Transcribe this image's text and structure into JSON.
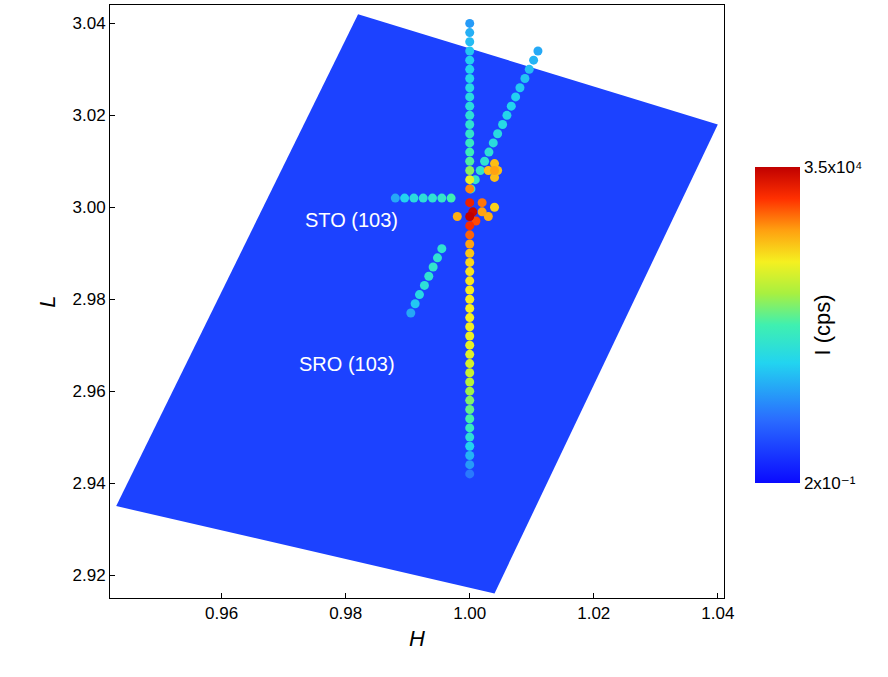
{
  "chart_data": {
    "type": "heatmap",
    "xlabel": "H",
    "ylabel": "L",
    "xlim": [
      0.942,
      1.041
    ],
    "ylim": [
      2.915,
      3.044
    ],
    "xticks": [
      0.96,
      0.98,
      {
        "value": 1,
        "label": "1.00"
      },
      1.02,
      1.04
    ],
    "yticks": [
      2.92,
      2.94,
      2.96,
      2.98,
      {
        "value": 3,
        "label": "3.00"
      },
      3.02,
      3.04
    ],
    "annotations": [
      {
        "text": "STO (103)",
        "x": 0.981,
        "y": 2.9972
      },
      {
        "text": "SRO (103)",
        "x": 0.9802,
        "y": 2.966
      }
    ],
    "map_outline": {
      "x": [
        0.982,
        1.04,
        1.004,
        0.943
      ],
      "y": [
        3.042,
        3.018,
        2.916,
        2.935
      ]
    },
    "background": 0.8,
    "points": {
      "x": [
        0.988,
        0.9895,
        0.991,
        0.9925,
        0.994,
        0.9955,
        0.997,
        0.9905,
        0.9912,
        0.9919,
        0.9927,
        0.9934,
        0.9941,
        0.9948,
        0.9955,
        1.0002,
        1.0009,
        1.0017,
        1.0024,
        1.0031,
        1.0038,
        1.0045,
        1.0053,
        1.006,
        1.0067,
        1.0074,
        1.0081,
        1.0089,
        1.0096,
        1.0103,
        1.011,
        1,
        1,
        1,
        1,
        1,
        1,
        1,
        1,
        1,
        1,
        1,
        1,
        1,
        1,
        1,
        1,
        1,
        1,
        1,
        1,
        1,
        1,
        1,
        1,
        1,
        1,
        1,
        1,
        1,
        1,
        1,
        1,
        1,
        1,
        1,
        1,
        1,
        1,
        1,
        1,
        1,
        1,
        1,
        1,
        1,
        1,
        1.003,
        1.0045,
        1.004,
        1.004,
        1.004,
        1.004,
        0.998,
        1.003,
        1.002,
        1.002,
        1.001,
        1,
        1,
        1.0005,
        1
      ],
      "y": [
        3.002,
        3.002,
        3.002,
        3.002,
        3.002,
        3.002,
        3.002,
        2.977,
        2.979,
        2.981,
        2.983,
        2.985,
        2.987,
        2.989,
        2.991,
        3.004,
        3.006,
        3.008,
        3.01,
        3.012,
        3.014,
        3.016,
        3.018,
        3.02,
        3.022,
        3.024,
        3.026,
        3.028,
        3.03,
        3.032,
        3.034,
        2.942,
        2.944,
        2.946,
        2.948,
        2.95,
        2.952,
        2.954,
        2.956,
        2.958,
        2.96,
        2.962,
        2.964,
        2.966,
        2.968,
        2.97,
        2.972,
        2.974,
        2.976,
        2.978,
        2.98,
        2.982,
        2.984,
        2.986,
        2.988,
        2.99,
        2.992,
        2.994,
        3.004,
        3.006,
        3.008,
        3.01,
        3.012,
        3.014,
        3.016,
        3.018,
        3.02,
        3.022,
        3.024,
        3.026,
        3.028,
        3.03,
        3.032,
        3.034,
        3.036,
        3.038,
        3.04,
        3.008,
        3.008,
        3.0095,
        3.0065,
        3.008,
        3,
        2.998,
        2.998,
        2.999,
        3.001,
        2.997,
        2.996,
        3.001,
        2.999,
        2.998
      ],
      "values": [
        8,
        20,
        30,
        35,
        40,
        50,
        80,
        8,
        15,
        25,
        35,
        40,
        45,
        40,
        40,
        60,
        50,
        45,
        40,
        35,
        30,
        28,
        25,
        22,
        20,
        18,
        16,
        14,
        12,
        10,
        8,
        3,
        6,
        10,
        20,
        35,
        60,
        90,
        130,
        180,
        250,
        350,
        450,
        550,
        650,
        750,
        800,
        850,
        900,
        950,
        1000,
        1000,
        1100,
        1200,
        1400,
        1800,
        3000,
        6000,
        4000,
        800,
        200,
        100,
        70,
        55,
        45,
        40,
        35,
        30,
        28,
        25,
        22,
        20,
        18,
        15,
        12,
        9,
        6,
        2000,
        2000,
        2000,
        2000,
        3000,
        1500,
        2500,
        2500,
        3000,
        5000,
        8000,
        12000,
        15000,
        30000,
        35000
      ]
    },
    "colorbar": {
      "title": "I (cps)",
      "range": [
        0.2,
        35000
      ],
      "ticks": [
        {
          "value": 0.2,
          "label": "2x10⁻¹"
        },
        {
          "value": 35000,
          "label": "3.5x10⁴"
        }
      ],
      "log": true
    }
  }
}
